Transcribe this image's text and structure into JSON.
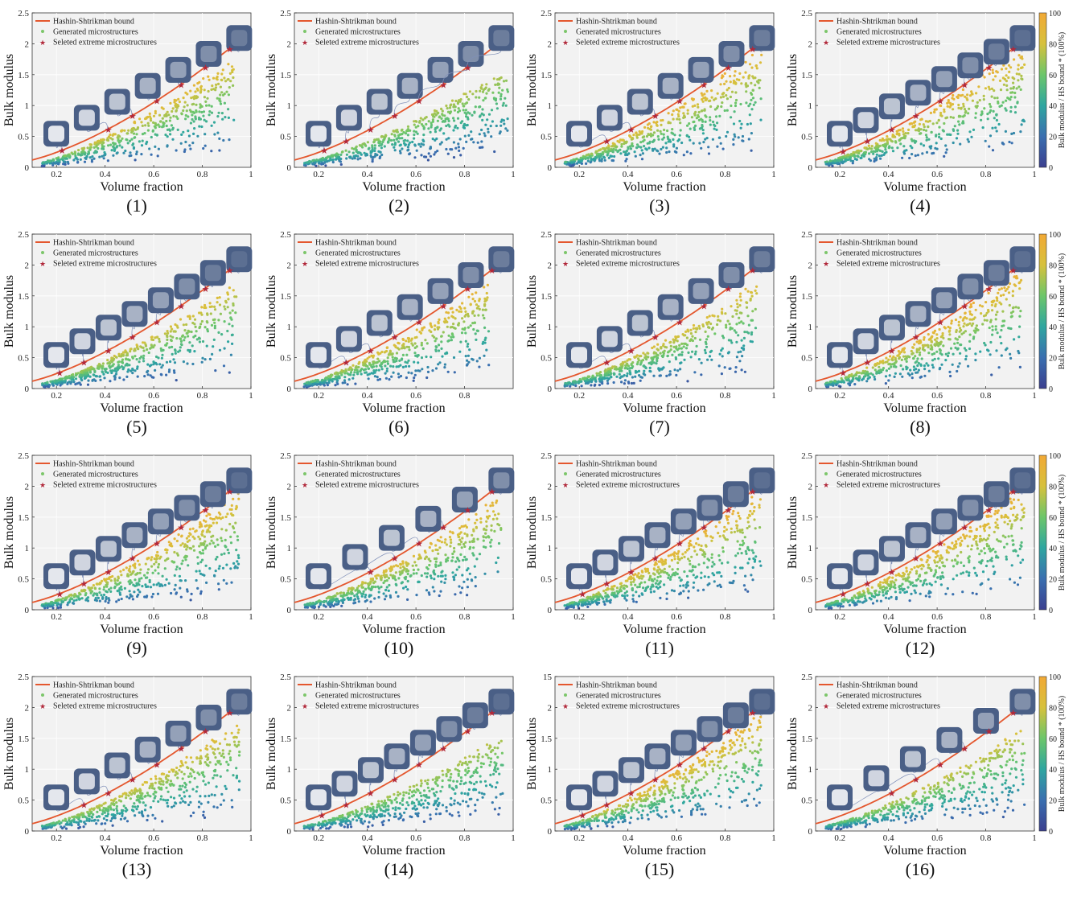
{
  "figure": {
    "xlabel": "Volume fraction",
    "ylabel": "Bulk modulus",
    "legend": {
      "items": [
        {
          "label": "Hashin-Shtrikman bound",
          "color": "#e4572e",
          "marker": "line"
        },
        {
          "label": "Generated microstructures",
          "color": "#7cc66a",
          "marker": "dot"
        },
        {
          "label": "Seleted extreme microstructures",
          "color": "#b1283a",
          "marker": "star"
        }
      ],
      "placement": "top-left"
    },
    "colorbar": {
      "label": "Bulk modulus / HS bound * (100%)",
      "ticks": [
        "0",
        "20",
        "40",
        "60",
        "80",
        "100"
      ],
      "colors": [
        "#3b3f8f",
        "#3a6fb0",
        "#2ea6a0",
        "#6cc66a",
        "#d7c13c",
        "#f2a935"
      ]
    },
    "panel_color": "#f2f2f2",
    "microstructure_color": "#4a5f86",
    "hs_color": "#e4572e",
    "selected_color": "#b1283a"
  },
  "chart_data": [
    {
      "type": "scatter",
      "caption": "(1)",
      "xlim": [
        0.1,
        1
      ],
      "ylim": [
        0,
        2.5
      ],
      "xticks": [
        "0.2",
        "0.4",
        "0.6",
        "0.8",
        "1"
      ],
      "yticks": [
        "0",
        "0.5",
        "1",
        "1.5",
        "2",
        "2.5"
      ],
      "has_colorbar": false,
      "cloud_end": 0.93,
      "cloud_top": 1.78,
      "selected_x": [
        0.22,
        0.41,
        0.51,
        0.61,
        0.71,
        0.81,
        0.91
      ]
    },
    {
      "type": "scatter",
      "caption": "(2)",
      "xlim": [
        0.1,
        1
      ],
      "ylim": [
        0,
        2.5
      ],
      "xticks": [
        "0.2",
        "0.4",
        "0.6",
        "0.8",
        "1"
      ],
      "yticks": [
        "0",
        "0.5",
        "1",
        "1.5",
        "2",
        "2.5"
      ],
      "has_colorbar": false,
      "cloud_end": 0.98,
      "cloud_top": 1.58,
      "selected_x": [
        0.22,
        0.31,
        0.41,
        0.51,
        0.61,
        0.71,
        0.81
      ]
    },
    {
      "type": "scatter",
      "caption": "(3)",
      "xlim": [
        0.1,
        1
      ],
      "ylim": [
        0,
        2.5
      ],
      "xticks": [
        "0.2",
        "0.4",
        "0.6",
        "0.8",
        "1"
      ],
      "yticks": [
        "0",
        "0.5",
        "1",
        "1.5",
        "2",
        "2.5"
      ],
      "has_colorbar": false,
      "cloud_end": 0.95,
      "cloud_top": 1.95,
      "selected_x": [
        0.31,
        0.41,
        0.51,
        0.61,
        0.71,
        0.81,
        0.91
      ]
    },
    {
      "type": "scatter",
      "caption": "(4)",
      "xlim": [
        0.1,
        1
      ],
      "ylim": [
        0,
        2.5
      ],
      "xticks": [
        "0.2",
        "0.4",
        "0.6",
        "0.8",
        "1"
      ],
      "yticks": [
        "0",
        "0.5",
        "1",
        "1.5",
        "2",
        "2.5"
      ],
      "has_colorbar": true,
      "cloud_end": 0.96,
      "cloud_top": 2.0,
      "selected_x": [
        0.21,
        0.31,
        0.41,
        0.51,
        0.61,
        0.71,
        0.81,
        0.91
      ]
    },
    {
      "type": "scatter",
      "caption": "(5)",
      "xlim": [
        0.1,
        1
      ],
      "ylim": [
        0,
        2.5
      ],
      "xticks": [
        "0.2",
        "0.4",
        "0.6",
        "0.8",
        "1"
      ],
      "yticks": [
        "0",
        "0.5",
        "1",
        "1.5",
        "2",
        "2.5"
      ],
      "has_colorbar": false,
      "cloud_end": 0.94,
      "cloud_top": 1.68,
      "selected_x": [
        0.21,
        0.31,
        0.41,
        0.51,
        0.61,
        0.71,
        0.81,
        0.91
      ]
    },
    {
      "type": "scatter",
      "caption": "(6)",
      "xlim": [
        0.1,
        1
      ],
      "ylim": [
        0,
        2.5
      ],
      "xticks": [
        "0.2",
        "0.4",
        "0.6",
        "0.8"
      ],
      "yticks": [
        "0",
        "0.5",
        "1",
        "1.5",
        "2",
        "2.5"
      ],
      "has_colorbar": false,
      "cloud_end": 0.9,
      "cloud_top": 1.72,
      "selected_x": [
        0.31,
        0.41,
        0.51,
        0.61,
        0.71,
        0.81,
        0.91
      ]
    },
    {
      "type": "scatter",
      "caption": "(7)",
      "xlim": [
        0.1,
        1
      ],
      "ylim": [
        0,
        2.5
      ],
      "xticks": [
        "0.2",
        "0.4",
        "0.6",
        "0.8",
        "1"
      ],
      "yticks": [
        "0",
        "0.5",
        "1",
        "1.5",
        "2",
        "2.5"
      ],
      "has_colorbar": false,
      "cloud_end": 0.93,
      "cloud_top": 1.7,
      "selected_x": [
        0.31,
        0.41,
        0.51,
        0.61,
        0.71,
        0.81,
        0.91
      ]
    },
    {
      "type": "scatter",
      "caption": "(8)",
      "xlim": [
        0.1,
        1
      ],
      "ylim": [
        0,
        2.5
      ],
      "xticks": [
        "0.2",
        "0.4",
        "0.6",
        "0.8",
        "1"
      ],
      "yticks": [
        "0",
        "0.5",
        "1",
        "1.5",
        "2",
        "2.5"
      ],
      "has_colorbar": true,
      "cloud_end": 0.95,
      "cloud_top": 1.95,
      "selected_x": [
        0.21,
        0.31,
        0.41,
        0.51,
        0.61,
        0.71,
        0.81,
        0.91
      ]
    },
    {
      "type": "scatter",
      "caption": "(9)",
      "xlim": [
        0.1,
        1
      ],
      "ylim": [
        0,
        2.5
      ],
      "xticks": [
        "0.2",
        "0.4",
        "0.6",
        "0.8",
        "1"
      ],
      "yticks": [
        "0",
        "0.5",
        "1",
        "1.5",
        "2",
        "2.5"
      ],
      "has_colorbar": false,
      "cloud_end": 0.95,
      "cloud_top": 1.9,
      "selected_x": [
        0.21,
        0.31,
        0.41,
        0.51,
        0.61,
        0.71,
        0.81,
        0.91
      ]
    },
    {
      "type": "scatter",
      "caption": "(10)",
      "xlim": [
        0.1,
        1
      ],
      "ylim": [
        0,
        2.5
      ],
      "xticks": [
        "0.2",
        "0.4",
        "0.6",
        "0.8",
        "1"
      ],
      "yticks": [
        "0",
        "0.5",
        "1",
        "1.5",
        "2",
        "2.5"
      ],
      "has_colorbar": false,
      "cloud_end": 0.95,
      "cloud_top": 1.85,
      "selected_x": [
        0.41,
        0.51,
        0.61,
        0.71,
        0.81,
        0.91
      ]
    },
    {
      "type": "scatter",
      "caption": "(11)",
      "xlim": [
        0.1,
        1
      ],
      "ylim": [
        0,
        2.5
      ],
      "xticks": [
        "0.2",
        "0.4",
        "0.6",
        "0.8",
        "1"
      ],
      "yticks": [
        "0",
        "0.5",
        "1",
        "1.5",
        "2",
        "2.5"
      ],
      "has_colorbar": false,
      "cloud_end": 0.95,
      "cloud_top": 1.95,
      "selected_x": [
        0.21,
        0.31,
        0.41,
        0.51,
        0.61,
        0.71,
        0.81,
        0.91
      ]
    },
    {
      "type": "scatter",
      "caption": "(12)",
      "xlim": [
        0.1,
        1
      ],
      "ylim": [
        0,
        2.5
      ],
      "xticks": [
        "0.2",
        "0.4",
        "0.6",
        "0.8",
        "1"
      ],
      "yticks": [
        "0",
        "0.5",
        "1",
        "1.5",
        "2",
        "2.5"
      ],
      "has_colorbar": true,
      "cloud_end": 0.96,
      "cloud_top": 2.0,
      "selected_x": [
        0.21,
        0.31,
        0.41,
        0.51,
        0.61,
        0.71,
        0.81,
        0.91
      ]
    },
    {
      "type": "scatter",
      "caption": "(13)",
      "xlim": [
        0.1,
        1
      ],
      "ylim": [
        0,
        2.5
      ],
      "xticks": [
        "0.2",
        "0.4",
        "0.6",
        "0.8",
        "1"
      ],
      "yticks": [
        "0",
        "0.5",
        "1",
        "1.5",
        "2",
        "2.5"
      ],
      "has_colorbar": false,
      "cloud_end": 0.96,
      "cloud_top": 1.75,
      "selected_x": [
        0.31,
        0.41,
        0.51,
        0.61,
        0.71,
        0.81,
        0.91
      ]
    },
    {
      "type": "scatter",
      "caption": "(14)",
      "xlim": [
        0.1,
        1
      ],
      "ylim": [
        0,
        2.5
      ],
      "xticks": [
        "0.2",
        "0.4",
        "0.6",
        "0.8",
        "1"
      ],
      "yticks": [
        "0",
        "0.5",
        "1",
        "1.5",
        "2",
        "2.5"
      ],
      "has_colorbar": false,
      "cloud_end": 0.96,
      "cloud_top": 1.55,
      "selected_x": [
        0.21,
        0.31,
        0.41,
        0.51,
        0.61,
        0.71,
        0.81,
        0.91
      ]
    },
    {
      "type": "scatter",
      "caption": "(15)",
      "xlim": [
        0.1,
        1
      ],
      "ylim": [
        0,
        15
      ],
      "xticks": [
        "0.2",
        "0.4",
        "0.6",
        "0.8",
        "1"
      ],
      "yticks": [
        "0",
        "0.5",
        "1",
        "1.5",
        "2",
        "2.5"
      ],
      "has_colorbar": false,
      "cloud_end": 0.95,
      "cloud_top": 1.95,
      "selected_x": [
        0.21,
        0.31,
        0.41,
        0.51,
        0.61,
        0.71,
        0.81,
        0.91
      ]
    },
    {
      "type": "scatter",
      "caption": "(16)",
      "xlim": [
        0.1,
        1
      ],
      "ylim": [
        0,
        2.5
      ],
      "xticks": [
        "0.2",
        "0.4",
        "0.6",
        "0.8",
        "1"
      ],
      "yticks": [
        "0",
        "0.5",
        "1",
        "1.5",
        "2",
        "2.5"
      ],
      "has_colorbar": true,
      "cloud_end": 0.96,
      "cloud_top": 1.65,
      "selected_x": [
        0.41,
        0.51,
        0.61,
        0.71,
        0.81,
        0.91
      ]
    }
  ]
}
